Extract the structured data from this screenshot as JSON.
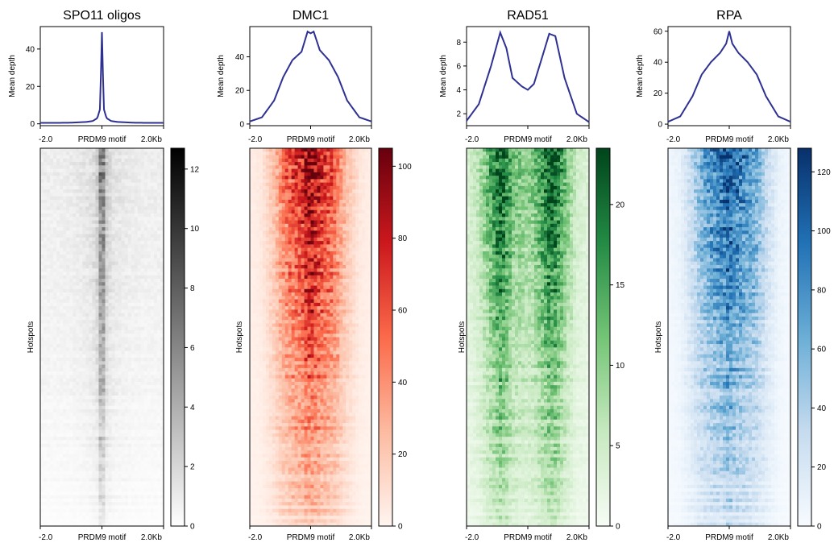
{
  "chart_data": [
    {
      "type": "line+heatmap",
      "title": "SPO11 oligos",
      "profile_ylabel": "Mean depth",
      "heatmap_ylabel": "Hotspots",
      "x_ticks": [
        "-2.0",
        "PRDM9 motif",
        "2.0Kb"
      ],
      "x": [
        -2.0,
        -1.5,
        -1.0,
        -0.5,
        -0.3,
        -0.15,
        -0.06,
        0.0,
        0.06,
        0.15,
        0.3,
        0.5,
        1.0,
        1.5,
        2.0
      ],
      "profile_values": [
        0.5,
        0.5,
        0.6,
        1.0,
        1.5,
        3,
        8,
        49,
        8,
        3,
        1.5,
        1.0,
        0.6,
        0.5,
        0.5
      ],
      "profile_yticks": [
        0,
        20,
        40
      ],
      "profile_ylim": [
        -1,
        52
      ],
      "colorbar_ticks": [
        0,
        2,
        4,
        6,
        8,
        10,
        12
      ],
      "colorbar_range": [
        0,
        12.7
      ],
      "colormap": [
        "#ffffff",
        "#000000"
      ],
      "line_color": "#2e3192"
    },
    {
      "type": "line+heatmap",
      "title": "DMC1",
      "profile_ylabel": "Mean depth",
      "heatmap_ylabel": "Hotspots",
      "x_ticks": [
        "-2.0",
        "PRDM9 motif",
        "2.0Kb"
      ],
      "x": [
        -2.0,
        -1.6,
        -1.2,
        -0.9,
        -0.6,
        -0.3,
        -0.1,
        0.0,
        0.1,
        0.3,
        0.6,
        0.9,
        1.2,
        1.6,
        2.0
      ],
      "profile_values": [
        1.5,
        4,
        14,
        28,
        38,
        43,
        55,
        54,
        55,
        44,
        38,
        28,
        14,
        4,
        1.5
      ],
      "profile_yticks": [
        0,
        20,
        40
      ],
      "profile_ylim": [
        -1,
        58
      ],
      "colorbar_ticks": [
        0,
        20,
        40,
        60,
        80,
        100
      ],
      "colorbar_range": [
        0,
        105
      ],
      "colormap": [
        "#fff5f0",
        "#fcbba1",
        "#fb6a4a",
        "#cb181d",
        "#67000d"
      ],
      "line_color": "#2e3192"
    },
    {
      "type": "line+heatmap",
      "title": "RAD51",
      "profile_ylabel": "Mean depth",
      "heatmap_ylabel": "Hotspots",
      "x_ticks": [
        "-2.0",
        "PRDM9 motif",
        "2.0Kb"
      ],
      "x": [
        -2.0,
        -1.6,
        -1.2,
        -0.9,
        -0.7,
        -0.5,
        -0.2,
        0.0,
        0.2,
        0.5,
        0.7,
        0.9,
        1.2,
        1.6,
        2.0
      ],
      "profile_values": [
        1.4,
        2.8,
        6.0,
        8.8,
        7.5,
        5.0,
        4.3,
        4.0,
        4.5,
        7.0,
        8.7,
        8.5,
        5.0,
        2.0,
        1.3
      ],
      "profile_yticks": [
        2,
        4,
        6,
        8
      ],
      "profile_ylim": [
        1,
        9.3
      ],
      "colorbar_ticks": [
        0,
        5,
        10,
        15,
        20
      ],
      "colorbar_range": [
        0,
        23.5
      ],
      "colormap": [
        "#f7fcf5",
        "#c7e9c0",
        "#74c476",
        "#238b45",
        "#00441b"
      ],
      "line_color": "#2e3192"
    },
    {
      "type": "line+heatmap",
      "title": "RPA",
      "profile_ylabel": "Mean depth",
      "heatmap_ylabel": "Hotspots",
      "x_ticks": [
        "-2.0",
        "PRDM9 motif",
        "2.0Kb"
      ],
      "x": [
        -2.0,
        -1.6,
        -1.2,
        -0.9,
        -0.6,
        -0.3,
        -0.1,
        0.0,
        0.1,
        0.3,
        0.6,
        0.9,
        1.2,
        1.6,
        2.0
      ],
      "profile_values": [
        1.5,
        5,
        18,
        32,
        40,
        46,
        52,
        60,
        52,
        46,
        40,
        32,
        18,
        5,
        1.5
      ],
      "profile_yticks": [
        0,
        20,
        40,
        60
      ],
      "profile_ylim": [
        -1,
        63
      ],
      "colorbar_ticks": [
        0,
        20,
        40,
        60,
        80,
        100,
        120
      ],
      "colorbar_range": [
        0,
        128
      ],
      "colormap": [
        "#f7fbff",
        "#c6dbef",
        "#6baed6",
        "#2171b5",
        "#08306b"
      ],
      "line_color": "#2e3192"
    }
  ]
}
